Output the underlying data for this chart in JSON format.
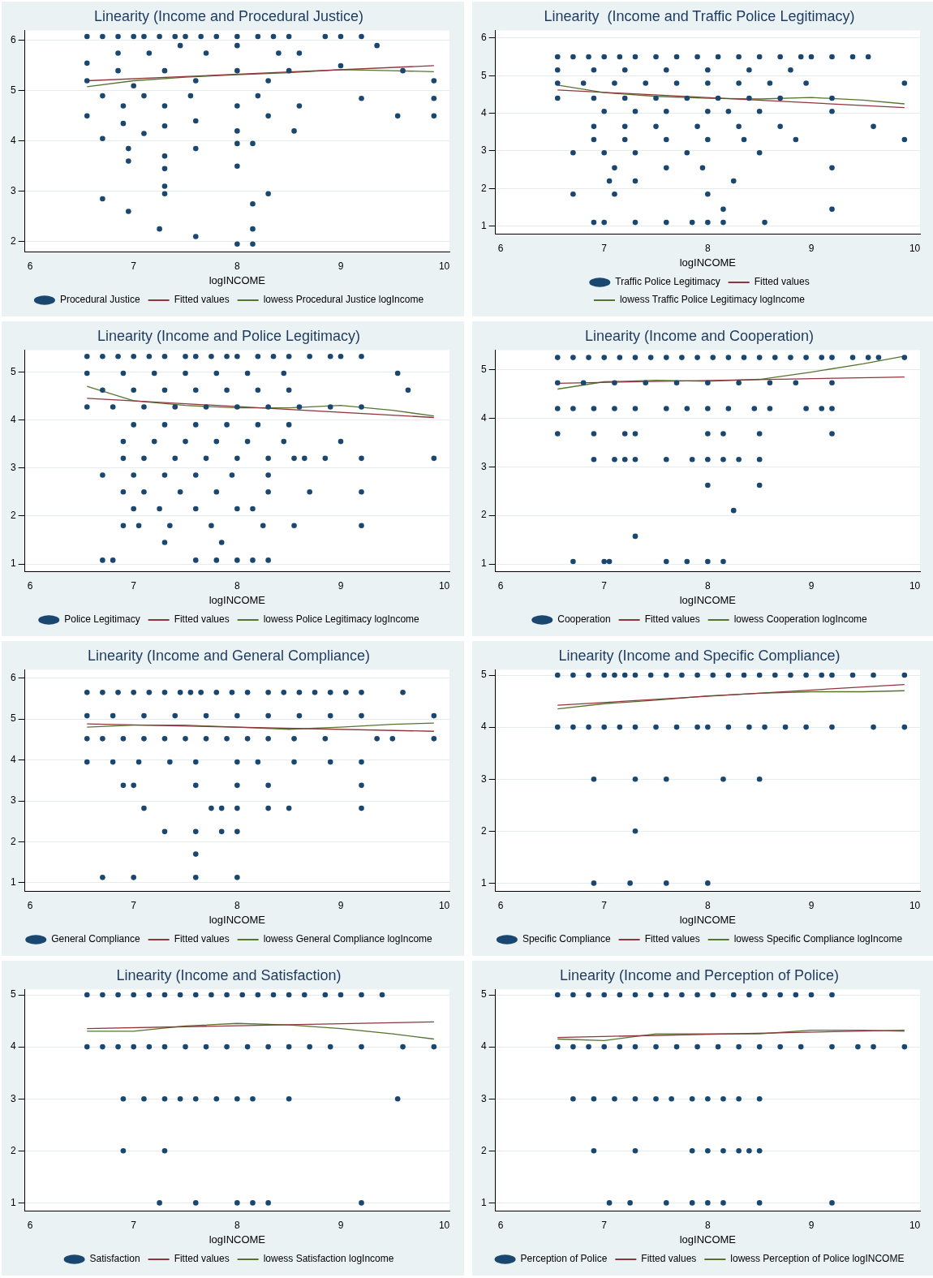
{
  "chart_data": [
    {
      "type": "scatter",
      "title": "Linearity (Income and Procedural Justice)",
      "xlabel": "logINCOME",
      "xlim": [
        5.95,
        10.05
      ],
      "xticks": [
        6,
        7,
        8,
        9,
        10
      ],
      "ylim": [
        1.8,
        6.2
      ],
      "yticks": [
        2,
        3,
        4,
        5,
        6
      ],
      "grid": "y",
      "legend": "bottom",
      "series": [
        {
          "name": "Procedural Justice",
          "type": "scatter",
          "marker": "circle",
          "color": "#1a476f",
          "x": [
            6.55,
            6.7,
            6.85,
            7,
            7.1,
            7.25,
            7.4,
            7.5,
            7.65,
            7.8,
            8,
            8.2,
            8.35,
            8.5,
            8.85,
            9,
            9.2,
            6.55,
            6.85,
            7.15,
            7.45,
            7.7,
            8,
            8.4,
            8.6,
            9.35,
            6.55,
            6.85,
            7,
            7.3,
            7.6,
            8,
            8.3,
            8.5,
            9,
            9.6,
            9.9,
            6.7,
            6.9,
            7.1,
            7.3,
            7.55,
            8,
            8.2,
            8.6,
            9.2,
            9.9,
            6.55,
            6.9,
            7.1,
            7.3,
            7.6,
            8,
            8.3,
            8.55,
            9.55,
            9.9,
            6.7,
            6.95,
            7.3,
            7.6,
            8,
            8.15,
            6.95,
            7.3,
            8,
            7.3,
            7.3,
            8.3,
            6.7,
            6.95,
            8.15,
            7.25,
            8.15,
            7.6,
            8,
            8.15
          ],
          "values": [
            6.08,
            6.08,
            6.08,
            6.08,
            6.08,
            6.08,
            6.08,
            6.08,
            6.08,
            6.08,
            6.08,
            6.08,
            6.08,
            6.08,
            6.08,
            6.08,
            6.08,
            5.55,
            5.75,
            5.75,
            5.9,
            5.75,
            5.9,
            5.75,
            5.75,
            5.9,
            5.2,
            5.4,
            5.1,
            5.4,
            5.2,
            5.4,
            5.2,
            5.4,
            5.5,
            5.4,
            5.2,
            4.9,
            4.7,
            4.9,
            4.7,
            4.9,
            4.7,
            4.9,
            4.7,
            4.85,
            4.85,
            4.5,
            4.35,
            4.15,
            4.3,
            4.4,
            4.2,
            4.5,
            4.2,
            4.5,
            4.5,
            4.05,
            3.85,
            3.7,
            3.85,
            3.95,
            3.95,
            3.6,
            3.45,
            3.5,
            3.1,
            2.95,
            2.95,
            2.85,
            2.6,
            2.75,
            2.25,
            2.25,
            2.1,
            1.95,
            1.95
          ]
        },
        {
          "name": "Fitted values",
          "type": "line",
          "marker": "none",
          "color": "#90353b",
          "x": [
            6.55,
            9.9
          ],
          "values": [
            5.2,
            5.5
          ]
        },
        {
          "name": "lowess Procedural Justice logIncome",
          "type": "line",
          "marker": "none",
          "color": "#55752f",
          "x": [
            6.55,
            7,
            7.5,
            8,
            8.5,
            9,
            9.5,
            9.9
          ],
          "values": [
            5.08,
            5.2,
            5.27,
            5.32,
            5.36,
            5.42,
            5.4,
            5.38
          ]
        }
      ]
    },
    {
      "type": "scatter",
      "title": "Linearity  (Income and Traffic Police Legitimacy)",
      "xlabel": "logINCOME",
      "xlim": [
        5.95,
        10.05
      ],
      "xticks": [
        6,
        7,
        8,
        9,
        10
      ],
      "ylim": [
        0.8,
        6.2
      ],
      "yticks": [
        1,
        2,
        3,
        4,
        5,
        6
      ],
      "grid": "y",
      "legend": "bottom",
      "series": [
        {
          "name": "Traffic Police Legitimacy",
          "type": "scatter",
          "marker": "circle",
          "color": "#1a476f",
          "x": [
            6.55,
            6.7,
            6.85,
            7,
            7.15,
            7.3,
            7.5,
            7.7,
            7.9,
            8.1,
            8.3,
            8.5,
            8.7,
            8.9,
            9,
            9.2,
            9.4,
            9.55,
            6.55,
            6.9,
            7.2,
            7.6,
            8,
            8.4,
            8.8,
            6.55,
            6.8,
            7.1,
            7.4,
            7.7,
            8,
            8.3,
            8.6,
            8.95,
            9.9,
            6.55,
            6.9,
            7.2,
            7.5,
            7.8,
            8.1,
            8.4,
            8.7,
            9.2,
            7,
            7.3,
            7.6,
            8,
            8.2,
            8.5,
            9.2,
            6.9,
            7.2,
            7.5,
            7.9,
            8.3,
            8.7,
            9.6,
            6.9,
            7.2,
            7.6,
            8,
            8.35,
            8.85,
            9.9,
            6.7,
            7,
            7.3,
            7.8,
            8.5,
            7.1,
            7.6,
            7.95,
            9.2,
            7.05,
            7.3,
            8.25,
            6.7,
            7.1,
            8,
            8.15,
            9.2,
            6.9,
            7,
            7.3,
            7.6,
            7.85,
            8,
            8.15,
            8.55
          ],
          "values": [
            5.5,
            5.5,
            5.5,
            5.5,
            5.5,
            5.5,
            5.5,
            5.5,
            5.5,
            5.5,
            5.5,
            5.5,
            5.5,
            5.5,
            5.5,
            5.5,
            5.5,
            5.5,
            5.15,
            5.15,
            5.15,
            5.15,
            5.15,
            5.15,
            5.15,
            4.8,
            4.8,
            4.8,
            4.8,
            4.8,
            4.8,
            4.8,
            4.8,
            4.8,
            4.8,
            4.4,
            4.4,
            4.4,
            4.4,
            4.4,
            4.4,
            4.4,
            4.4,
            4.4,
            4.05,
            4.05,
            4.05,
            4.05,
            4.05,
            4.05,
            4.05,
            3.65,
            3.65,
            3.65,
            3.65,
            3.65,
            3.65,
            3.65,
            3.3,
            3.3,
            3.3,
            3.3,
            3.3,
            3.3,
            3.3,
            2.95,
            2.95,
            2.95,
            2.95,
            2.95,
            2.55,
            2.55,
            2.55,
            2.55,
            2.2,
            2.2,
            2.2,
            1.85,
            1.85,
            1.85,
            1.45,
            1.45,
            1.1,
            1.1,
            1.1,
            1.1,
            1.1,
            1.1,
            1.1,
            1.1
          ]
        },
        {
          "name": "Fitted values",
          "type": "line",
          "marker": "none",
          "color": "#90353b",
          "x": [
            6.55,
            9.9
          ],
          "values": [
            4.62,
            4.15
          ]
        },
        {
          "name": "lowess Traffic Police Legitimacy logIncome",
          "type": "line",
          "marker": "none",
          "color": "#55752f",
          "x": [
            6.55,
            7,
            7.5,
            8,
            8.5,
            9,
            9.5,
            9.9
          ],
          "values": [
            4.75,
            4.55,
            4.45,
            4.4,
            4.38,
            4.42,
            4.35,
            4.25
          ]
        }
      ]
    },
    {
      "type": "scatter",
      "title": "Linearity (Income and Police Legitimacy)",
      "xlabel": "logINCOME",
      "xlim": [
        5.95,
        10.05
      ],
      "xticks": [
        6,
        7,
        8,
        9,
        10
      ],
      "ylim": [
        0.85,
        5.45
      ],
      "yticks": [
        1,
        2,
        3,
        4,
        5
      ],
      "grid": "y",
      "legend": "bottom",
      "series": [
        {
          "name": "Police Legitimacy",
          "type": "scatter",
          "marker": "circle",
          "color": "#1a476f",
          "x": [
            6.55,
            6.7,
            6.85,
            7,
            7.15,
            7.3,
            7.5,
            7.6,
            7.75,
            7.9,
            8,
            8.2,
            8.35,
            8.5,
            8.7,
            8.9,
            9,
            9.2,
            6.55,
            6.9,
            7.2,
            7.5,
            7.8,
            8.1,
            8.45,
            9.55,
            6.7,
            7,
            7.3,
            7.6,
            7.9,
            8.2,
            8.5,
            9.65,
            6.55,
            6.8,
            7.1,
            7.4,
            7.7,
            8,
            8.3,
            8.6,
            8.9,
            9.2,
            7,
            7.3,
            7.6,
            7.9,
            8.2,
            8.5,
            6.9,
            7.2,
            7.5,
            7.8,
            8.1,
            8.45,
            9,
            6.9,
            7.1,
            7.4,
            7.7,
            8,
            8.3,
            8.55,
            8.65,
            8.85,
            9.2,
            9.9,
            6.7,
            7,
            7.3,
            7.6,
            7.95,
            8.3,
            6.9,
            7.1,
            7.45,
            7.8,
            8.3,
            8.7,
            9.2,
            7,
            7.25,
            7.6,
            8,
            8.15,
            6.9,
            7.05,
            7.35,
            7.75,
            8.25,
            8.55,
            9.2,
            7.3,
            7.85,
            6.7,
            6.8,
            7.6,
            7.8,
            8,
            8.15,
            8.3
          ],
          "values": [
            5.32,
            5.32,
            5.32,
            5.32,
            5.32,
            5.32,
            5.32,
            5.32,
            5.32,
            5.32,
            5.32,
            5.32,
            5.32,
            5.32,
            5.32,
            5.32,
            5.32,
            5.32,
            4.97,
            4.97,
            4.97,
            4.97,
            4.97,
            4.97,
            4.97,
            4.97,
            4.62,
            4.62,
            4.62,
            4.62,
            4.62,
            4.62,
            4.62,
            4.62,
            4.27,
            4.27,
            4.27,
            4.27,
            4.27,
            4.27,
            4.27,
            4.27,
            4.27,
            4.27,
            3.9,
            3.9,
            3.9,
            3.9,
            3.9,
            3.9,
            3.55,
            3.55,
            3.55,
            3.55,
            3.55,
            3.55,
            3.55,
            3.2,
            3.2,
            3.2,
            3.2,
            3.2,
            3.2,
            3.2,
            3.2,
            3.2,
            3.2,
            3.2,
            2.85,
            2.85,
            2.85,
            2.85,
            2.85,
            2.85,
            2.5,
            2.5,
            2.5,
            2.5,
            2.5,
            2.5,
            2.5,
            2.15,
            2.15,
            2.15,
            2.15,
            2.15,
            1.8,
            1.8,
            1.8,
            1.8,
            1.8,
            1.8,
            1.8,
            1.45,
            1.45,
            1.08,
            1.08,
            1.08,
            1.08,
            1.08,
            1.08,
            1.08
          ]
        },
        {
          "name": "Fitted values",
          "type": "line",
          "marker": "none",
          "color": "#90353b",
          "x": [
            6.55,
            9.9
          ],
          "values": [
            4.45,
            4.05
          ]
        },
        {
          "name": "lowess Police Legitimacy logIncome",
          "type": "line",
          "marker": "none",
          "color": "#55752f",
          "x": [
            6.55,
            7,
            7.5,
            8,
            8.5,
            9,
            9.5,
            9.9
          ],
          "values": [
            4.7,
            4.4,
            4.3,
            4.25,
            4.25,
            4.3,
            4.2,
            4.08
          ]
        }
      ]
    },
    {
      "type": "scatter",
      "title": "Linearity (Income and Cooperation)",
      "xlabel": "logINCOME",
      "xlim": [
        5.95,
        10.05
      ],
      "xticks": [
        6,
        7,
        8,
        9,
        10
      ],
      "ylim": [
        0.85,
        5.4
      ],
      "yticks": [
        1,
        2,
        3,
        4,
        5
      ],
      "grid": "y",
      "legend": "bottom",
      "series": [
        {
          "name": "Cooperation",
          "type": "scatter",
          "marker": "circle",
          "color": "#1a476f",
          "x": [
            6.55,
            6.7,
            6.85,
            7,
            7.15,
            7.3,
            7.45,
            7.6,
            7.75,
            7.9,
            8.05,
            8.2,
            8.35,
            8.5,
            8.65,
            8.8,
            8.95,
            9.1,
            9.2,
            9.4,
            9.55,
            9.65,
            9.9,
            6.55,
            6.8,
            7.1,
            7.4,
            7.7,
            8,
            8.3,
            8.6,
            8.85,
            9.2,
            6.55,
            6.7,
            6.9,
            7.1,
            7.3,
            7.6,
            7.8,
            8,
            8.2,
            8.45,
            8.6,
            8.95,
            9.1,
            9.2,
            6.55,
            6.9,
            7.2,
            7.3,
            8,
            8.15,
            8.5,
            9.2,
            6.9,
            7.1,
            7.2,
            7.3,
            7.6,
            7.85,
            8,
            8.15,
            8.3,
            8.5,
            8,
            8.5,
            8.25,
            7.3,
            6.7,
            7,
            7.05,
            7.6,
            7.8,
            8,
            8.15
          ],
          "values": [
            5.25,
            5.25,
            5.25,
            5.25,
            5.25,
            5.25,
            5.25,
            5.25,
            5.25,
            5.25,
            5.25,
            5.25,
            5.25,
            5.25,
            5.25,
            5.25,
            5.25,
            5.25,
            5.25,
            5.25,
            5.25,
            5.25,
            5.25,
            4.73,
            4.73,
            4.73,
            4.73,
            4.73,
            4.73,
            4.73,
            4.73,
            4.73,
            4.73,
            4.2,
            4.2,
            4.2,
            4.2,
            4.2,
            4.2,
            4.2,
            4.2,
            4.2,
            4.2,
            4.2,
            4.2,
            4.2,
            4.2,
            3.68,
            3.68,
            3.68,
            3.68,
            3.68,
            3.68,
            3.68,
            3.68,
            3.15,
            3.15,
            3.15,
            3.15,
            3.15,
            3.15,
            3.15,
            3.15,
            3.15,
            3.15,
            2.62,
            2.62,
            2.1,
            1.57,
            1.05,
            1.05,
            1.05,
            1.05,
            1.05,
            1.05,
            1.05
          ]
        },
        {
          "name": "Fitted values",
          "type": "line",
          "marker": "none",
          "color": "#90353b",
          "x": [
            6.55,
            9.9
          ],
          "values": [
            4.72,
            4.85
          ]
        },
        {
          "name": "lowess Cooperation logIncome",
          "type": "line",
          "marker": "none",
          "color": "#55752f",
          "x": [
            6.55,
            7,
            7.5,
            8,
            8.5,
            9,
            9.5,
            9.9
          ],
          "values": [
            4.6,
            4.75,
            4.78,
            4.76,
            4.8,
            4.95,
            5.12,
            5.28
          ]
        }
      ]
    },
    {
      "type": "scatter",
      "title": "Linearity (Income and General Compliance)",
      "xlabel": "logINCOME",
      "xlim": [
        5.95,
        10.05
      ],
      "xticks": [
        6,
        7,
        8,
        9,
        10
      ],
      "ylim": [
        0.8,
        6.2
      ],
      "yticks": [
        1,
        2,
        3,
        4,
        5,
        6
      ],
      "grid": "y",
      "legend": "bottom",
      "series": [
        {
          "name": "General Compliance",
          "type": "scatter",
          "marker": "circle",
          "color": "#1a476f",
          "x": [
            6.55,
            6.7,
            6.85,
            7,
            7.15,
            7.3,
            7.45,
            7.55,
            7.65,
            7.8,
            7.95,
            8.1,
            8.3,
            8.45,
            8.6,
            8.75,
            8.9,
            9.05,
            9.2,
            9.6,
            6.55,
            6.8,
            7.1,
            7.4,
            7.7,
            8,
            8.3,
            8.6,
            8.9,
            9.2,
            9.9,
            6.55,
            6.7,
            6.9,
            7.1,
            7.3,
            7.5,
            7.7,
            7.9,
            8.1,
            8.3,
            8.55,
            8.85,
            9.35,
            9.5,
            9.9,
            6.55,
            6.8,
            7.05,
            7.35,
            7.6,
            8,
            8.2,
            8.55,
            8.9,
            9.2,
            6.9,
            7,
            7.6,
            8,
            8.3,
            9.2,
            7.1,
            7.75,
            7.85,
            8,
            8.3,
            8.5,
            9.2,
            7.3,
            7.6,
            7.85,
            8,
            7.6,
            6.7,
            7,
            7.6,
            8
          ],
          "values": [
            5.65,
            5.65,
            5.65,
            5.65,
            5.65,
            5.65,
            5.65,
            5.65,
            5.65,
            5.65,
            5.65,
            5.65,
            5.65,
            5.65,
            5.65,
            5.65,
            5.65,
            5.65,
            5.65,
            5.65,
            5.08,
            5.08,
            5.08,
            5.08,
            5.08,
            5.08,
            5.08,
            5.08,
            5.08,
            5.08,
            5.08,
            4.52,
            4.52,
            4.52,
            4.52,
            4.52,
            4.52,
            4.52,
            4.52,
            4.52,
            4.52,
            4.52,
            4.52,
            4.52,
            4.52,
            4.52,
            3.95,
            3.95,
            3.95,
            3.95,
            3.95,
            3.95,
            3.95,
            3.95,
            3.95,
            3.95,
            3.38,
            3.38,
            3.38,
            3.38,
            3.38,
            3.38,
            2.82,
            2.82,
            2.82,
            2.82,
            2.82,
            2.82,
            2.82,
            2.25,
            2.25,
            2.25,
            2.25,
            1.7,
            1.13,
            1.13,
            1.13,
            1.13
          ]
        },
        {
          "name": "Fitted values",
          "type": "line",
          "marker": "none",
          "color": "#90353b",
          "x": [
            6.55,
            9.9
          ],
          "values": [
            4.88,
            4.7
          ]
        },
        {
          "name": "lowess General Compliance logIncome",
          "type": "line",
          "marker": "none",
          "color": "#55752f",
          "x": [
            6.55,
            7,
            7.5,
            8,
            8.5,
            9,
            9.5,
            9.9
          ],
          "values": [
            4.8,
            4.85,
            4.85,
            4.8,
            4.75,
            4.8,
            4.87,
            4.9
          ]
        }
      ]
    },
    {
      "type": "scatter",
      "title": "Linearity (Income and Specific Compliance)",
      "xlabel": "logINCOME",
      "xlim": [
        5.95,
        10.05
      ],
      "xticks": [
        6,
        7,
        8,
        9,
        10
      ],
      "ylim": [
        0.85,
        5.1
      ],
      "yticks": [
        1,
        2,
        3,
        4,
        5
      ],
      "grid": "y",
      "legend": "bottom",
      "series": [
        {
          "name": "Specific Compliance",
          "type": "scatter",
          "marker": "circle",
          "color": "#1a476f",
          "x": [
            6.55,
            6.7,
            6.85,
            7,
            7.1,
            7.2,
            7.3,
            7.45,
            7.6,
            7.75,
            7.9,
            8.05,
            8.2,
            8.35,
            8.5,
            8.65,
            8.8,
            8.95,
            9.1,
            9.2,
            9.4,
            9.6,
            9.9,
            6.55,
            6.7,
            6.85,
            7,
            7.15,
            7.3,
            7.5,
            7.7,
            7.9,
            8,
            8.2,
            8.4,
            8.55,
            8.75,
            8.95,
            9.2,
            9.6,
            9.9,
            6.9,
            7.3,
            7.6,
            8.15,
            8.5,
            7.3,
            6.9,
            7.25,
            7.6,
            8
          ],
          "values": [
            5,
            5,
            5,
            5,
            5,
            5,
            5,
            5,
            5,
            5,
            5,
            5,
            5,
            5,
            5,
            5,
            5,
            5,
            5,
            5,
            5,
            5,
            5,
            4,
            4,
            4,
            4,
            4,
            4,
            4,
            4,
            4,
            4,
            4,
            4,
            4,
            4,
            4,
            4,
            4,
            4,
            3,
            3,
            3,
            3,
            3,
            2,
            1,
            1,
            1,
            1
          ]
        },
        {
          "name": "Fitted values",
          "type": "line",
          "marker": "none",
          "color": "#90353b",
          "x": [
            6.55,
            9.9
          ],
          "values": [
            4.42,
            4.82
          ]
        },
        {
          "name": "lowess Specific Compliance logIncome",
          "type": "line",
          "marker": "none",
          "color": "#55752f",
          "x": [
            6.55,
            7,
            7.5,
            8,
            8.5,
            9,
            9.5,
            9.9
          ],
          "values": [
            4.35,
            4.45,
            4.52,
            4.6,
            4.65,
            4.68,
            4.68,
            4.7
          ]
        }
      ]
    },
    {
      "type": "scatter",
      "title": "Linearity (Income and Satisfaction)",
      "xlabel": "logINCOME",
      "xlim": [
        5.95,
        10.05
      ],
      "xticks": [
        6,
        7,
        8,
        9,
        10
      ],
      "ylim": [
        0.85,
        5.1
      ],
      "yticks": [
        1,
        2,
        3,
        4,
        5
      ],
      "grid": "y",
      "legend": "bottom",
      "series": [
        {
          "name": "Satisfaction",
          "type": "scatter",
          "marker": "circle",
          "color": "#1a476f",
          "x": [
            6.55,
            6.7,
            6.85,
            7,
            7.15,
            7.3,
            7.45,
            7.6,
            7.75,
            7.9,
            8.05,
            8.2,
            8.35,
            8.5,
            8.65,
            8.85,
            9,
            9.2,
            9.4,
            6.55,
            6.7,
            6.85,
            7,
            7.15,
            7.3,
            7.5,
            7.7,
            7.9,
            8.1,
            8.3,
            8.5,
            8.7,
            8.9,
            9.2,
            9.6,
            9.9,
            6.9,
            7.1,
            7.3,
            7.45,
            7.6,
            7.8,
            8,
            8.15,
            8.5,
            9.55,
            6.9,
            7.3,
            7.25,
            7.6,
            8,
            8.15,
            8.3,
            9.2
          ],
          "values": [
            5,
            5,
            5,
            5,
            5,
            5,
            5,
            5,
            5,
            5,
            5,
            5,
            5,
            5,
            5,
            5,
            5,
            5,
            5,
            4,
            4,
            4,
            4,
            4,
            4,
            4,
            4,
            4,
            4,
            4,
            4,
            4,
            4,
            4,
            4,
            4,
            3,
            3,
            3,
            3,
            3,
            3,
            3,
            3,
            3,
            3,
            2,
            2,
            1,
            1,
            1,
            1,
            1,
            1
          ]
        },
        {
          "name": "Fitted values",
          "type": "line",
          "marker": "none",
          "color": "#90353b",
          "x": [
            6.55,
            9.9
          ],
          "values": [
            4.35,
            4.48
          ]
        },
        {
          "name": "lowess Satisfaction logIncome",
          "type": "line",
          "marker": "none",
          "color": "#55752f",
          "x": [
            6.55,
            7,
            7.5,
            8,
            8.5,
            9,
            9.5,
            9.9
          ],
          "values": [
            4.3,
            4.3,
            4.4,
            4.45,
            4.42,
            4.35,
            4.25,
            4.15
          ]
        }
      ]
    },
    {
      "type": "scatter",
      "title": "Linearity (Income and Perception of Police)",
      "xlabel": "logINCOME",
      "xlim": [
        5.95,
        10.05
      ],
      "xticks": [
        6,
        7,
        8,
        9,
        10
      ],
      "ylim": [
        0.85,
        5.1
      ],
      "yticks": [
        1,
        2,
        3,
        4,
        5
      ],
      "grid": "y",
      "legend": "bottom",
      "series": [
        {
          "name": "Perception of Police",
          "type": "scatter",
          "marker": "circle",
          "color": "#1a476f",
          "x": [
            6.55,
            6.7,
            6.85,
            7,
            7.15,
            7.3,
            7.45,
            7.6,
            7.75,
            7.9,
            8.05,
            8.25,
            8.4,
            8.55,
            8.7,
            8.85,
            9,
            9.2,
            6.55,
            6.7,
            6.85,
            7,
            7.15,
            7.3,
            7.5,
            7.7,
            7.9,
            8.1,
            8.3,
            8.5,
            8.7,
            8.9,
            9.2,
            9.45,
            9.6,
            9.9,
            6.7,
            6.9,
            7.1,
            7.3,
            7.5,
            7.65,
            7.85,
            8,
            8.15,
            8.3,
            8.5,
            6.9,
            7.3,
            7.85,
            8,
            8.15,
            8.3,
            8.4,
            8.5,
            7.05,
            7.25,
            7.6,
            7.85,
            8,
            8.15,
            8.5,
            9.2
          ],
          "values": [
            5,
            5,
            5,
            5,
            5,
            5,
            5,
            5,
            5,
            5,
            5,
            5,
            5,
            5,
            5,
            5,
            5,
            5,
            4,
            4,
            4,
            4,
            4,
            4,
            4,
            4,
            4,
            4,
            4,
            4,
            4,
            4,
            4,
            4,
            4,
            4,
            3,
            3,
            3,
            3,
            3,
            3,
            3,
            3,
            3,
            3,
            3,
            2,
            2,
            2,
            2,
            2,
            2,
            2,
            2,
            1,
            1,
            1,
            1,
            1,
            1,
            1,
            1
          ]
        },
        {
          "name": "Fitted values",
          "type": "line",
          "marker": "none",
          "color": "#90353b",
          "x": [
            6.55,
            9.9
          ],
          "values": [
            4.18,
            4.32
          ]
        },
        {
          "name": "lowess Perception of Police logINCOME",
          "type": "line",
          "marker": "none",
          "color": "#55752f",
          "x": [
            6.55,
            7,
            7.5,
            8,
            8.5,
            9,
            9.5,
            9.9
          ],
          "values": [
            4.15,
            4.12,
            4.25,
            4.25,
            4.25,
            4.32,
            4.32,
            4.3
          ]
        }
      ]
    }
  ]
}
